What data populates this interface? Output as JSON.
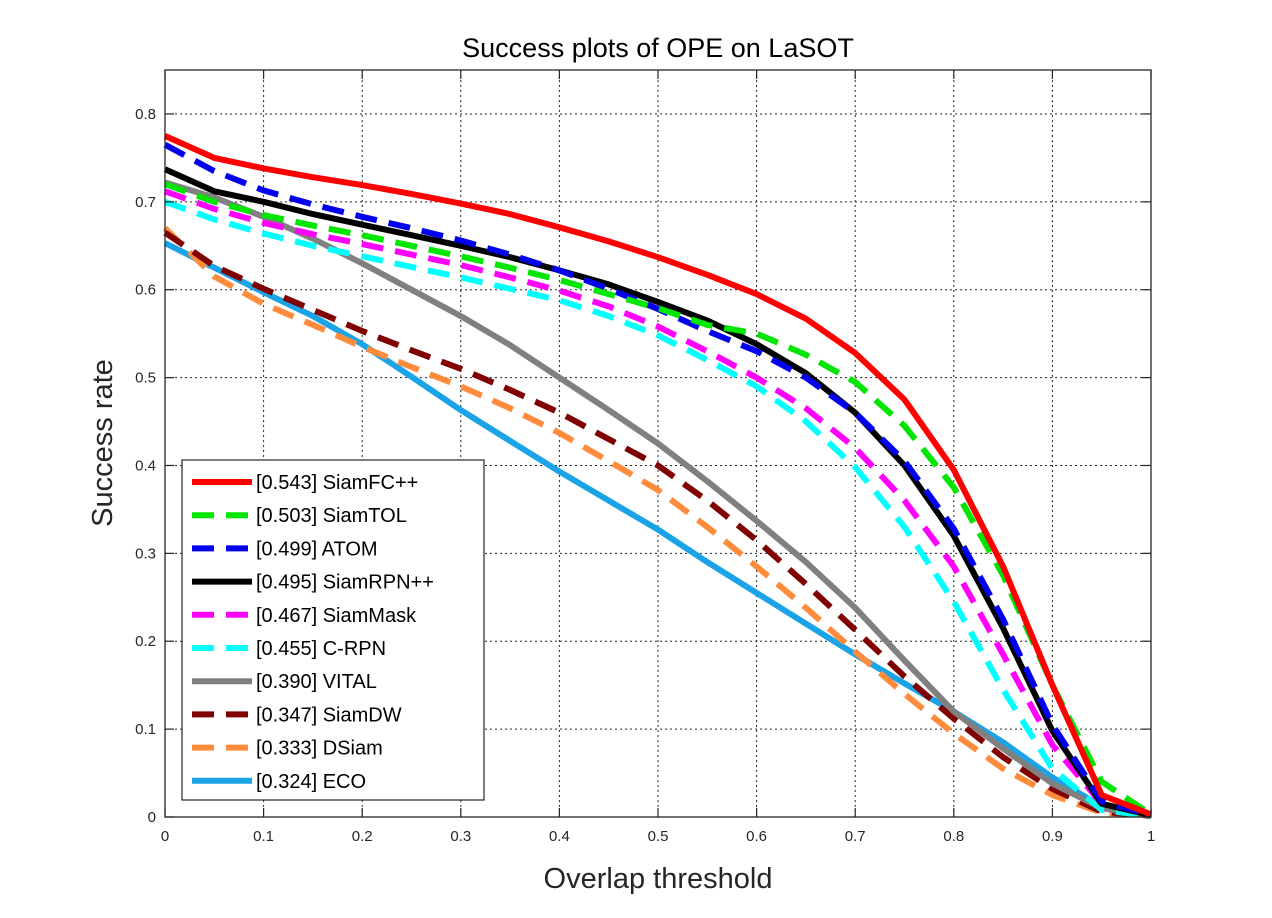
{
  "chart_data": {
    "type": "line",
    "title": "Success plots of OPE on LaSOT",
    "xlabel": "Overlap threshold",
    "ylabel": "Success rate",
    "xlim": [
      0,
      1
    ],
    "ylim": [
      0,
      0.85
    ],
    "grid": true,
    "legend_position": "bottom-left",
    "x_ticks": [
      "0",
      "0.1",
      "0.2",
      "0.3",
      "0.4",
      "0.5",
      "0.6",
      "0.7",
      "0.8",
      "0.9",
      "1"
    ],
    "y_ticks": [
      "0",
      "0.1",
      "0.2",
      "0.3",
      "0.4",
      "0.5",
      "0.6",
      "0.7",
      "0.8"
    ],
    "x": [
      0,
      0.05,
      0.1,
      0.15,
      0.2,
      0.25,
      0.3,
      0.35,
      0.4,
      0.45,
      0.5,
      0.55,
      0.6,
      0.65,
      0.7,
      0.75,
      0.8,
      0.85,
      0.9,
      0.95,
      1.0
    ],
    "series": [
      {
        "name": "SiamFC++",
        "label": "[0.543] SiamFC++",
        "color": "#ff0000",
        "style": "solid",
        "values": [
          0.775,
          0.75,
          0.738,
          0.728,
          0.719,
          0.709,
          0.698,
          0.686,
          0.671,
          0.655,
          0.637,
          0.617,
          0.595,
          0.567,
          0.528,
          0.475,
          0.395,
          0.285,
          0.15,
          0.025,
          0.003
        ]
      },
      {
        "name": "SiamTOL",
        "label": "[0.503] SiamTOL",
        "color": "#00e600",
        "style": "dashed",
        "values": [
          0.72,
          0.7,
          0.685,
          0.673,
          0.662,
          0.65,
          0.638,
          0.625,
          0.611,
          0.595,
          0.579,
          0.56,
          0.55,
          0.526,
          0.495,
          0.445,
          0.375,
          0.275,
          0.15,
          0.04,
          0.003
        ]
      },
      {
        "name": "ATOM",
        "label": "[0.499] ATOM",
        "color": "#0000ee",
        "style": "dashed",
        "values": [
          0.765,
          0.735,
          0.713,
          0.697,
          0.683,
          0.67,
          0.656,
          0.64,
          0.622,
          0.601,
          0.578,
          0.553,
          0.53,
          0.5,
          0.46,
          0.405,
          0.328,
          0.225,
          0.105,
          0.018,
          0.002
        ]
      },
      {
        "name": "SiamRPN++",
        "label": "[0.495] SiamRPN++",
        "color": "#000000",
        "style": "solid",
        "values": [
          0.737,
          0.712,
          0.7,
          0.686,
          0.674,
          0.662,
          0.65,
          0.637,
          0.622,
          0.606,
          0.586,
          0.565,
          0.538,
          0.505,
          0.46,
          0.4,
          0.32,
          0.215,
          0.098,
          0.015,
          0.002
        ]
      },
      {
        "name": "SiamMask",
        "label": "[0.467] SiamMask",
        "color": "#ff00ff",
        "style": "dashed",
        "values": [
          0.712,
          0.692,
          0.676,
          0.663,
          0.652,
          0.64,
          0.628,
          0.614,
          0.599,
          0.581,
          0.558,
          0.53,
          0.5,
          0.465,
          0.42,
          0.36,
          0.285,
          0.185,
          0.082,
          0.015,
          0.002
        ]
      },
      {
        "name": "C-RPN",
        "label": "[0.455] C-RPN",
        "color": "#00ffff",
        "style": "dashed",
        "values": [
          0.7,
          0.68,
          0.664,
          0.65,
          0.638,
          0.626,
          0.614,
          0.601,
          0.588,
          0.57,
          0.548,
          0.52,
          0.49,
          0.45,
          0.398,
          0.33,
          0.245,
          0.145,
          0.055,
          0.008,
          0.001
        ]
      },
      {
        "name": "VITAL",
        "label": "[0.390] VITAL",
        "color": "#808080",
        "style": "solid",
        "values": [
          0.722,
          0.705,
          0.683,
          0.658,
          0.63,
          0.6,
          0.57,
          0.537,
          0.5,
          0.463,
          0.425,
          0.382,
          0.337,
          0.29,
          0.238,
          0.178,
          0.12,
          0.078,
          0.038,
          0.01,
          0.001
        ]
      },
      {
        "name": "SiamDW",
        "label": "[0.347] SiamDW",
        "color": "#800000",
        "style": "dashed",
        "values": [
          0.665,
          0.627,
          0.601,
          0.577,
          0.553,
          0.531,
          0.51,
          0.486,
          0.46,
          0.43,
          0.4,
          0.36,
          0.315,
          0.265,
          0.213,
          0.16,
          0.112,
          0.068,
          0.032,
          0.006,
          0.001
        ]
      },
      {
        "name": "DSiam",
        "label": "[0.333] DSiam",
        "color": "#ff8c3c",
        "style": "dashed",
        "values": [
          0.67,
          0.615,
          0.584,
          0.56,
          0.535,
          0.512,
          0.49,
          0.465,
          0.437,
          0.405,
          0.372,
          0.33,
          0.285,
          0.238,
          0.188,
          0.14,
          0.095,
          0.055,
          0.025,
          0.005,
          0.001
        ]
      },
      {
        "name": "ECO",
        "label": "[0.324] ECO",
        "color": "#1aa3e6",
        "style": "solid",
        "values": [
          0.653,
          0.625,
          0.597,
          0.57,
          0.538,
          0.501,
          0.463,
          0.428,
          0.393,
          0.36,
          0.327,
          0.29,
          0.255,
          0.22,
          0.185,
          0.152,
          0.12,
          0.085,
          0.045,
          0.012,
          0.002
        ]
      }
    ]
  }
}
